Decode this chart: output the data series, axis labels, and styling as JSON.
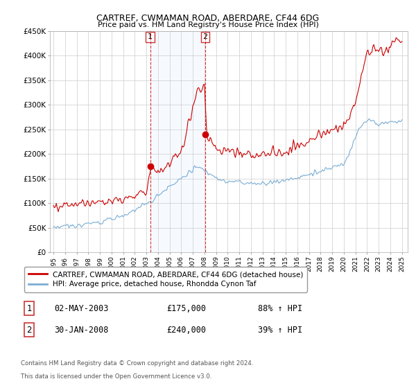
{
  "title": "CARTREF, CWMAMAN ROAD, ABERDARE, CF44 6DG",
  "subtitle": "Price paid vs. HM Land Registry's House Price Index (HPI)",
  "red_line_color": "#cc0000",
  "blue_line_color": "#7aadd4",
  "shade_color": "#ddeeff",
  "sale1_date_label": "02-MAY-2003",
  "sale1_year": 2003.33,
  "sale1_price": 175000,
  "sale1_pct": "88% ↑ HPI",
  "sale2_date_label": "30-JAN-2008",
  "sale2_year": 2008.08,
  "sale2_price": 240000,
  "sale2_pct": "39% ↑ HPI",
  "legend_red_label": "CARTREF, CWMAMAN ROAD, ABERDARE, CF44 6DG (detached house)",
  "legend_blue_label": "HPI: Average price, detached house, Rhondda Cynon Taf",
  "footer1": "Contains HM Land Registry data © Crown copyright and database right 2024.",
  "footer2": "This data is licensed under the Open Government Licence v3.0.",
  "ylim": [
    0,
    450000
  ],
  "xlim_start": 1994.7,
  "xlim_end": 2025.5,
  "ylabel_ticks": [
    0,
    50000,
    100000,
    150000,
    200000,
    250000,
    300000,
    350000,
    400000,
    450000
  ],
  "ylabel_labels": [
    "£0",
    "£50K",
    "£100K",
    "£150K",
    "£200K",
    "£250K",
    "£300K",
    "£350K",
    "£400K",
    "£450K"
  ],
  "xtick_years": [
    1995,
    1996,
    1997,
    1998,
    1999,
    2000,
    2001,
    2002,
    2003,
    2004,
    2005,
    2006,
    2007,
    2008,
    2009,
    2010,
    2011,
    2012,
    2013,
    2014,
    2015,
    2016,
    2017,
    2018,
    2019,
    2020,
    2021,
    2022,
    2023,
    2024,
    2025
  ]
}
